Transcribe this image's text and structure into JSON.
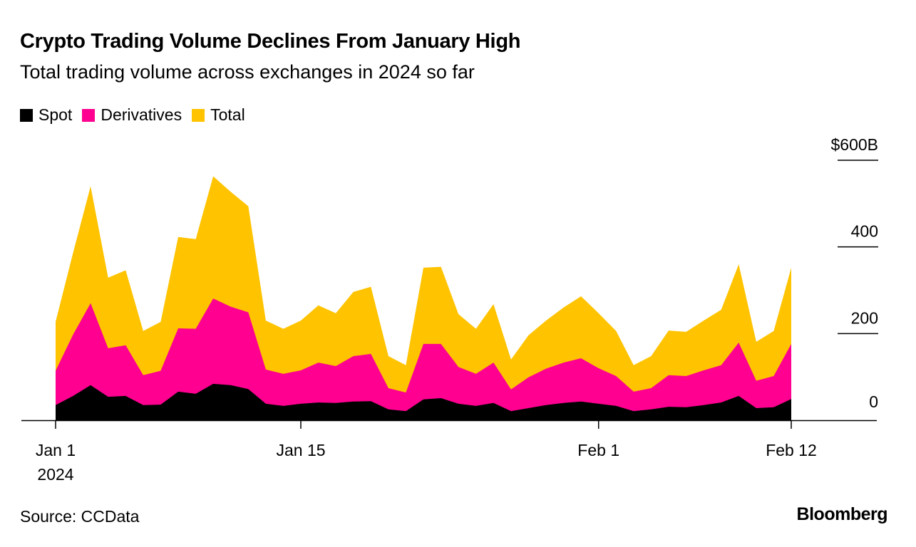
{
  "chart_data": {
    "type": "area",
    "title": "Crypto Trading Volume Declines From January High",
    "subtitle": "Total trading volume across exchanges in 2024 so far",
    "source": "Source: CCData",
    "brand": "Bloomberg",
    "x": [
      "2024-01-01",
      "2024-01-02",
      "2024-01-03",
      "2024-01-04",
      "2024-01-05",
      "2024-01-06",
      "2024-01-07",
      "2024-01-08",
      "2024-01-09",
      "2024-01-10",
      "2024-01-11",
      "2024-01-12",
      "2024-01-13",
      "2024-01-14",
      "2024-01-15",
      "2024-01-16",
      "2024-01-17",
      "2024-01-18",
      "2024-01-19",
      "2024-01-20",
      "2024-01-21",
      "2024-01-22",
      "2024-01-23",
      "2024-01-24",
      "2024-01-25",
      "2024-01-26",
      "2024-01-27",
      "2024-01-28",
      "2024-01-29",
      "2024-01-30",
      "2024-01-31",
      "2024-02-01",
      "2024-02-02",
      "2024-02-03",
      "2024-02-04",
      "2024-02-05",
      "2024-02-06",
      "2024-02-07",
      "2024-02-08",
      "2024-02-09",
      "2024-02-10",
      "2024-02-11",
      "2024-02-12"
    ],
    "series": [
      {
        "name": "Total",
        "color": "#FFC300",
        "values": [
          227,
          387,
          540,
          329,
          346,
          206,
          227,
          423,
          418,
          563,
          527,
          494,
          230,
          211,
          230,
          265,
          247,
          296,
          308,
          148,
          127,
          352,
          354,
          245,
          211,
          268,
          140,
          196,
          230,
          260,
          286,
          247,
          206,
          127,
          148,
          207,
          204,
          230,
          255,
          360,
          181,
          206,
          352
        ]
      },
      {
        "name": "Derivatives",
        "color": "#FF0090",
        "values": [
          114,
          198,
          270,
          166,
          173,
          104,
          114,
          212,
          211,
          281,
          262,
          249,
          117,
          107,
          115,
          133,
          125,
          148,
          153,
          74,
          64,
          176,
          176,
          123,
          107,
          133,
          71,
          99,
          119,
          133,
          143,
          120,
          102,
          66,
          74,
          104,
          102,
          115,
          127,
          179,
          91,
          102,
          176
        ]
      },
      {
        "name": "Spot",
        "color": "#000000",
        "values": [
          35,
          56,
          81,
          54,
          56,
          35,
          36,
          66,
          61,
          84,
          81,
          72,
          38,
          33,
          38,
          41,
          40,
          43,
          44,
          25,
          21,
          48,
          51,
          38,
          33,
          40,
          21,
          28,
          35,
          40,
          43,
          38,
          33,
          21,
          25,
          31,
          30,
          35,
          41,
          56,
          28,
          30,
          49
        ]
      }
    ],
    "legend": [
      "Spot",
      "Derivatives",
      "Total"
    ],
    "legend_colors": [
      "#000000",
      "#FF0090",
      "#FFC300"
    ],
    "legend_placement": "top-left",
    "ylim": [
      0,
      600
    ],
    "yticks": [
      0,
      200,
      400,
      600
    ],
    "ytick_labels": [
      "0",
      "200",
      "400",
      "$600B"
    ],
    "xticks": [
      {
        "date": "2024-01-01",
        "label": "Jan 1",
        "sublabel": "2024"
      },
      {
        "date": "2024-01-15",
        "label": "Jan 15"
      },
      {
        "date": "2024-02-01",
        "label": "Feb 1"
      },
      {
        "date": "2024-02-12",
        "label": "Feb 12"
      }
    ],
    "yaxis_side": "right",
    "grid": false
  }
}
